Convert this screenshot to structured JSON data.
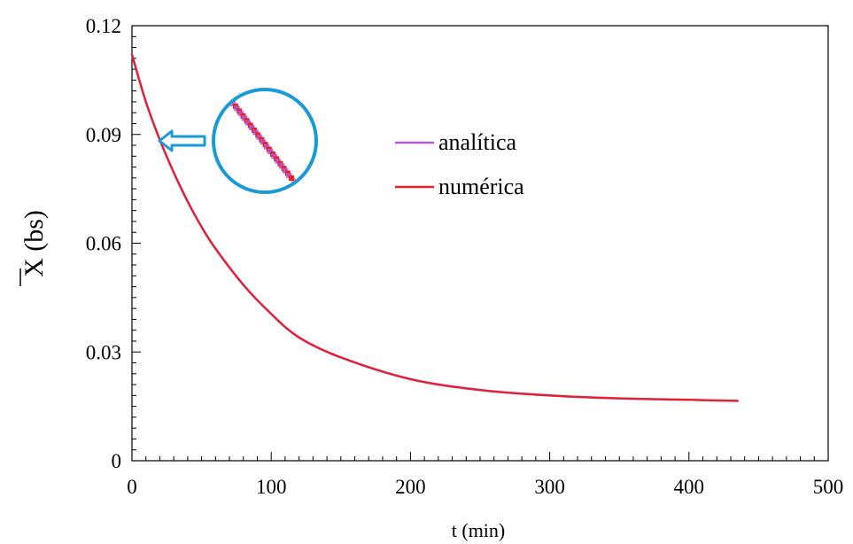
{
  "chart_data": {
    "type": "line",
    "xlabel": "t (min)",
    "ylabel": "X (bs)",
    "xlim": [
      0,
      500
    ],
    "ylim": [
      0,
      0.12
    ],
    "x_ticks": [
      "0",
      "100",
      "200",
      "300",
      "400",
      "500"
    ],
    "y_ticks": [
      "0",
      "0.03",
      "0.06",
      "0.09",
      "0.12"
    ],
    "grid": false,
    "legend_position": "center",
    "series": [
      {
        "name": "analítica",
        "color": "#b05bd0",
        "x": [
          0,
          10,
          20,
          30,
          40,
          50,
          60,
          80,
          100,
          120,
          150,
          200,
          250,
          300,
          350,
          400,
          435
        ],
        "y": [
          0.112,
          0.099,
          0.0885,
          0.0795,
          0.0715,
          0.0645,
          0.0585,
          0.0485,
          0.0405,
          0.034,
          0.0285,
          0.0225,
          0.0195,
          0.018,
          0.0172,
          0.0168,
          0.0165
        ]
      },
      {
        "name": "numérica",
        "color": "#e8202a",
        "x": [
          0,
          10,
          20,
          30,
          40,
          50,
          60,
          80,
          100,
          120,
          150,
          200,
          250,
          300,
          350,
          400,
          435
        ],
        "y": [
          0.112,
          0.099,
          0.0885,
          0.0795,
          0.0715,
          0.0645,
          0.0585,
          0.0485,
          0.0405,
          0.034,
          0.0285,
          0.0225,
          0.0195,
          0.018,
          0.0172,
          0.0168,
          0.0165
        ]
      }
    ],
    "annotation": {
      "type": "zoom-inset",
      "circle_color": "#1a9ad6",
      "arrow_color": "#1a9ad6"
    }
  }
}
